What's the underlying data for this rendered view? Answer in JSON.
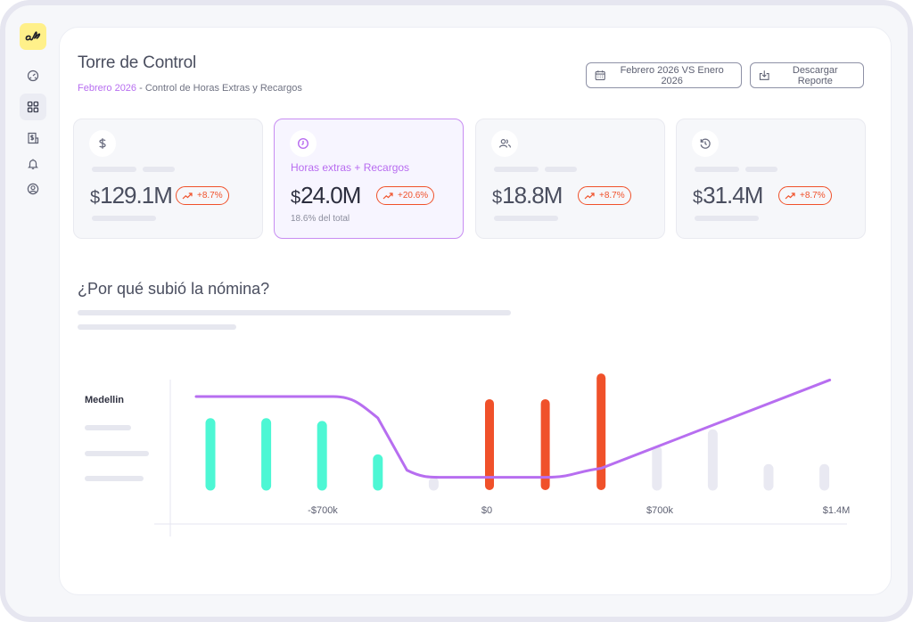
{
  "app": {
    "logo_text": "al",
    "logo_color": "#fff08a"
  },
  "sidebar": {
    "items": [
      {
        "name": "dashboard",
        "icon": "gauge-icon",
        "active": false
      },
      {
        "name": "grid",
        "icon": "grid-icon",
        "active": true
      },
      {
        "name": "payroll",
        "icon": "receipt-dollar-icon",
        "active": false
      },
      {
        "name": "notifications",
        "icon": "bell-icon",
        "active": false
      },
      {
        "name": "profile",
        "icon": "user-circle-icon",
        "active": false
      }
    ]
  },
  "header": {
    "title": "Torre de Control",
    "subtitle_accent": "Febrero 2026",
    "subtitle_rest": " - Control de Horas Extras y Recargos",
    "period_button": "Febrero 2026 VS Enero 2026",
    "download_button": "Descargar Reporte"
  },
  "cards": [
    {
      "icon": "dollar-icon",
      "label": "",
      "currency": "$",
      "value": "129.1M",
      "change": "+8.7%",
      "note": "",
      "highlight": false
    },
    {
      "icon": "clock-icon",
      "label": "Horas extras + Recargos",
      "currency": "$",
      "value": "24.0M",
      "change": "+20.6%",
      "note": "18.6% del total",
      "highlight": true
    },
    {
      "icon": "users-icon",
      "label": "",
      "currency": "$",
      "value": "18.8M",
      "change": "+8.7%",
      "note": "",
      "highlight": false
    },
    {
      "icon": "history-icon",
      "label": "",
      "currency": "$",
      "value": "31.4M",
      "change": "+8.7%",
      "note": "",
      "highlight": false
    }
  ],
  "colors": {
    "accent": "#b76ef0",
    "increase": "#f0512a",
    "decrease": "#4df7d4",
    "neutral": "#e9e9f2",
    "line": "#b76ef0"
  },
  "section": {
    "title": "¿Por qué subió la nómina?"
  },
  "chart_data": {
    "type": "bar",
    "title": "¿Por qué subió la nómina?",
    "row_label": "Medellin",
    "xlabel": "",
    "ylabel": "",
    "x_tick_labels": [
      "-$700k",
      "$0",
      "$700k",
      "$1.4M"
    ],
    "bar_series": {
      "name": "bars",
      "values": [
        0.9,
        0.9,
        0.86,
        0.38,
        0.05,
        1.18,
        1.18,
        1.55,
        0.5,
        0.74,
        0.24,
        0.24
      ],
      "kinds": [
        "decrease",
        "decrease",
        "decrease",
        "decrease",
        "neutral",
        "increase",
        "increase",
        "increase",
        "neutral",
        "neutral",
        "neutral",
        "neutral"
      ],
      "unit": "relative"
    },
    "line_series": {
      "name": "trend",
      "points": [
        [
          0,
          1.0
        ],
        [
          2.2,
          1.0
        ],
        [
          4,
          0.12
        ],
        [
          6,
          0.12
        ],
        [
          7,
          0.25
        ],
        [
          11,
          1.52
        ]
      ],
      "unit": "relative"
    },
    "grid": false,
    "legend": "none"
  }
}
